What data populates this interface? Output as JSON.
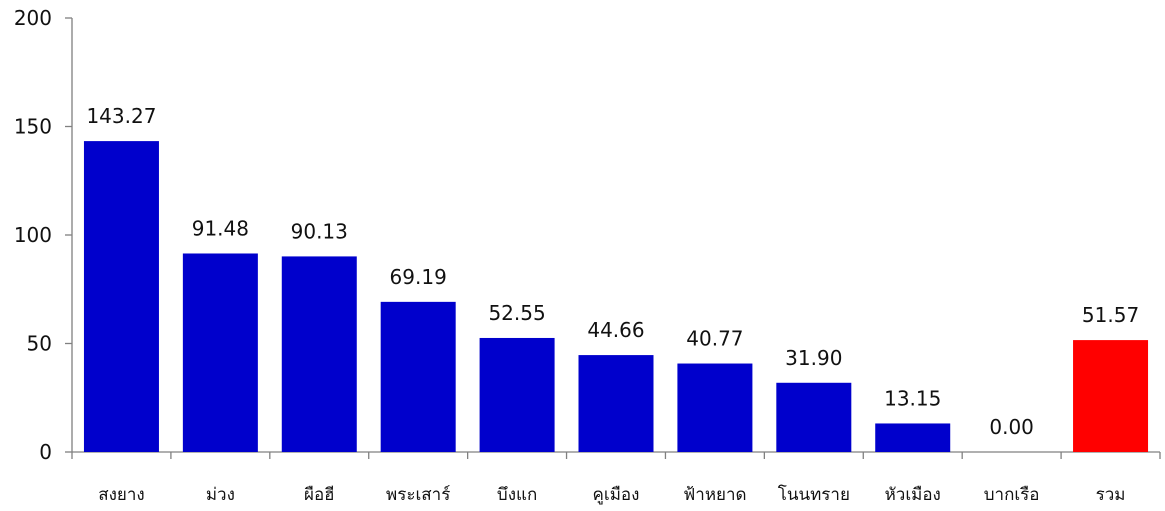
{
  "chart_data": {
    "type": "bar",
    "title": "",
    "xlabel": "",
    "ylabel": "",
    "ylim": [
      0,
      200
    ],
    "yticks": [
      0,
      50,
      100,
      150,
      200
    ],
    "grid": false,
    "legend": "none",
    "categories": [
      "สงยาง",
      "ม่วง",
      "ผือฮี",
      "พระเสาร์",
      "บึงแก",
      "คูเมือง",
      "ฟ้าหยาด",
      "โนนทราย",
      "หัวเมือง",
      "บากเรือ",
      "รวม"
    ],
    "values": [
      143.27,
      91.48,
      90.13,
      69.19,
      52.55,
      44.66,
      40.77,
      31.9,
      13.15,
      0.0,
      51.57
    ],
    "data_labels": [
      "143.27",
      "91.48",
      "90.13",
      "69.19",
      "52.55",
      "44.66",
      "40.77",
      "31.90",
      "13.15",
      "0.00",
      "51.57"
    ],
    "colors": {
      "bar": "#0000CC",
      "total_bar": "#FF0000",
      "axis": "#808080"
    },
    "highlight_category": "รวม"
  }
}
